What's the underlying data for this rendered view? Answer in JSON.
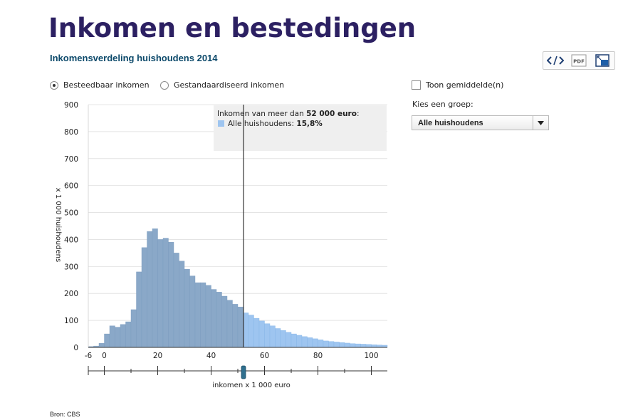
{
  "header": {
    "title": "Inkomen en bestedingen",
    "subtitle": "Inkomensverdeling huishoudens 2014"
  },
  "toolbar": {
    "embed_icon": "code-icon",
    "pdf_label": "PDF",
    "fullscreen_icon": "expand-icon"
  },
  "controls": {
    "radio_options": [
      "Besteedbaar inkomen",
      "Gestandaardiseerd inkomen"
    ],
    "radio_selected": "Besteedbaar inkomen",
    "average_checkbox_label": "Toon gemiddelde(n)",
    "average_checked": false,
    "group_label": "Kies een groep:",
    "group_selected": "Alle huishoudens"
  },
  "tooltip": {
    "heading_prefix": "Inkomen van meer dan",
    "heading_value": "52 000 euro",
    "heading_suffix": ":",
    "series_label": "Alle huishoudens:",
    "series_value": "15,8%"
  },
  "source": "Bron: CBS",
  "colors": {
    "bar_below": "#8aa8c8",
    "bar_above": "#9ec5f0",
    "title": "#2c2062",
    "subtitle": "#0d4a6b",
    "slider_handle": "#2f6f8e"
  },
  "chart_data": {
    "type": "bar",
    "title": "",
    "xlabel": "inkomen x 1 000 euro",
    "ylabel": "x 1 000 huishoudens",
    "ylim": [
      0,
      900
    ],
    "xlim": [
      -6,
      106
    ],
    "yticks": [
      0,
      100,
      200,
      300,
      400,
      500,
      600,
      700,
      800,
      900
    ],
    "xticks": [
      -6,
      0,
      20,
      40,
      60,
      80,
      100
    ],
    "threshold": 52,
    "bin_width": 2,
    "bins_start": [
      -6,
      -4,
      -2,
      0,
      2,
      4,
      6,
      8,
      10,
      12,
      14,
      16,
      18,
      20,
      22,
      24,
      26,
      28,
      30,
      32,
      34,
      36,
      38,
      40,
      42,
      44,
      46,
      48,
      50,
      52,
      54,
      56,
      58,
      60,
      62,
      64,
      66,
      68,
      70,
      72,
      74,
      76,
      78,
      80,
      82,
      84,
      86,
      88,
      90,
      92,
      94,
      96,
      98,
      100,
      102,
      104
    ],
    "values": [
      3,
      5,
      15,
      50,
      80,
      75,
      85,
      95,
      140,
      280,
      370,
      430,
      440,
      400,
      405,
      390,
      350,
      320,
      290,
      265,
      240,
      240,
      230,
      215,
      205,
      190,
      175,
      160,
      150,
      128,
      120,
      108,
      98,
      88,
      80,
      70,
      63,
      56,
      50,
      45,
      40,
      36,
      32,
      28,
      24,
      22,
      20,
      18,
      16,
      14,
      13,
      12,
      11,
      10,
      9,
      8
    ],
    "grid": true,
    "legend": "none"
  }
}
